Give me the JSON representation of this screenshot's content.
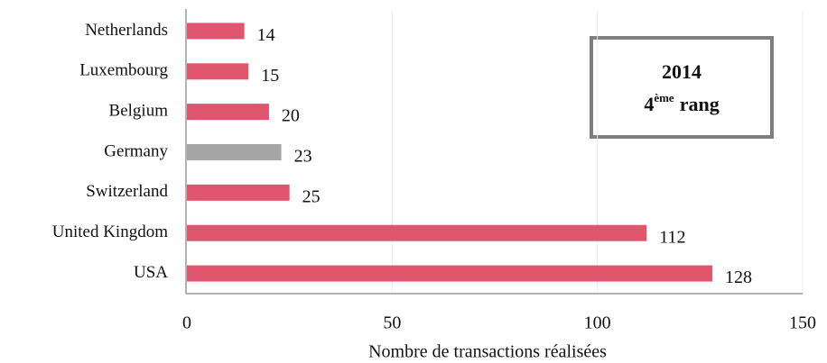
{
  "chart_data": {
    "type": "barh",
    "categories": [
      "Netherlands",
      "Luxembourg",
      "Belgium",
      "Germany",
      "Switzerland",
      "United Kingdom",
      "USA"
    ],
    "values": [
      14,
      15,
      20,
      23,
      25,
      112,
      128
    ],
    "colors": [
      "#e0566e",
      "#e0566e",
      "#e0566e",
      "#a6a6a6",
      "#e0566e",
      "#e0566e",
      "#e0566e"
    ],
    "xlim": [
      0,
      150
    ],
    "xticks": [
      0,
      50,
      100,
      150
    ],
    "grid": true,
    "x_label": "Nombre de transactions réalisées",
    "annotation": {
      "year": "2014",
      "rank": "4",
      "rank_suffix": "ème",
      "rank_word": "rang"
    }
  }
}
